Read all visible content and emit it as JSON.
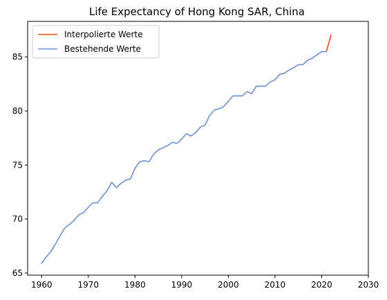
{
  "chart_data": {
    "type": "line",
    "title": "Life Expectancy of Hong Kong SAR, China",
    "xlabel": "",
    "ylabel": "",
    "xlim": [
      1957,
      2030
    ],
    "ylim": [
      64.8,
      88.3
    ],
    "xticks": [
      1960,
      1970,
      1980,
      1990,
      2000,
      2010,
      2020,
      2030
    ],
    "yticks": [
      65,
      70,
      75,
      80,
      85
    ],
    "grid": false,
    "legend_position": "top-left",
    "series": [
      {
        "name": "Interpolierte Werte",
        "color": "#e8501c",
        "x": [
          2021,
          2022
        ],
        "y": [
          85.5,
          87.0
        ]
      },
      {
        "name": "Bestehende Werte",
        "color": "#6f8fd6",
        "x": [
          1960,
          1961,
          1962,
          1963,
          1964,
          1965,
          1966,
          1967,
          1968,
          1969,
          1970,
          1971,
          1972,
          1973,
          1974,
          1975,
          1976,
          1977,
          1978,
          1979,
          1980,
          1981,
          1982,
          1983,
          1984,
          1985,
          1986,
          1987,
          1988,
          1989,
          1990,
          1991,
          1992,
          1993,
          1994,
          1995,
          1996,
          1997,
          1998,
          1999,
          2000,
          2001,
          2002,
          2003,
          2004,
          2005,
          2006,
          2007,
          2008,
          2009,
          2010,
          2011,
          2012,
          2013,
          2014,
          2015,
          2016,
          2017,
          2018,
          2019,
          2020,
          2021
        ],
        "y": [
          65.9,
          66.5,
          67.0,
          67.7,
          68.5,
          69.2,
          69.5,
          69.9,
          70.4,
          70.6,
          71.1,
          71.5,
          71.5,
          72.1,
          72.6,
          73.4,
          72.9,
          73.3,
          73.6,
          73.7,
          74.7,
          75.3,
          75.4,
          75.3,
          76.0,
          76.4,
          76.6,
          76.8,
          77.1,
          77.0,
          77.4,
          77.9,
          77.7,
          78.0,
          78.5,
          78.7,
          79.6,
          80.1,
          80.2,
          80.4,
          80.9,
          81.4,
          81.4,
          81.4,
          81.8,
          81.6,
          82.3,
          82.3,
          82.3,
          82.7,
          82.9,
          83.4,
          83.5,
          83.8,
          84.0,
          84.3,
          84.3,
          84.7,
          84.9,
          85.2,
          85.5,
          85.5
        ]
      }
    ]
  }
}
